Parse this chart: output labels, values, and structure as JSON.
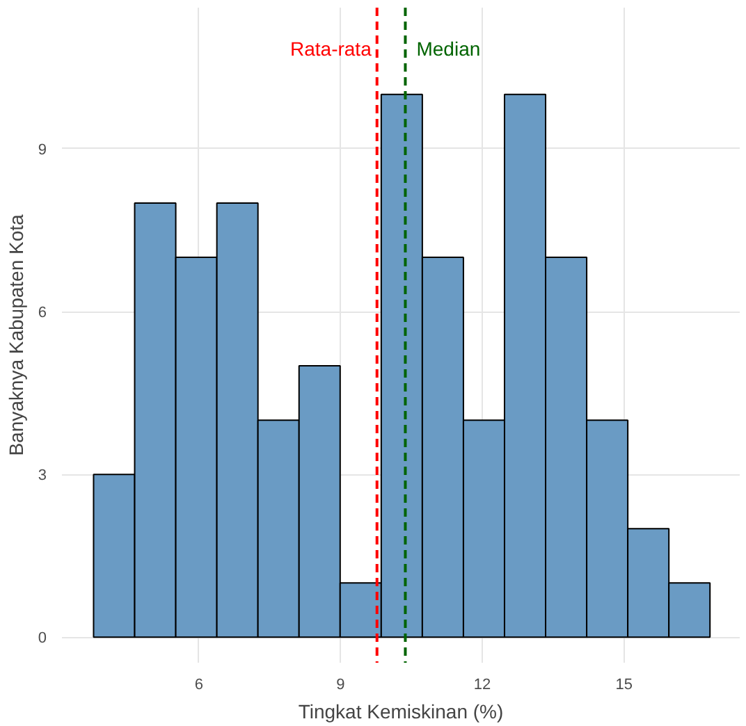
{
  "chart_data": {
    "type": "histogram",
    "xlabel": "Tingkat Kemiskinan (%)",
    "ylabel": "Banyaknya Kabupaten Kota",
    "bins": [
      3.77,
      4.64,
      5.51,
      6.38,
      7.25,
      8.12,
      8.99,
      9.86,
      10.73,
      11.6,
      12.47,
      13.34,
      14.21,
      15.08,
      15.95,
      16.82
    ],
    "values": [
      3,
      8,
      7,
      8,
      4,
      5,
      1,
      10,
      7,
      4,
      10,
      7,
      4,
      2,
      1
    ],
    "color": "#6a9bc4",
    "xlim": [
      3.1,
      17.45
    ],
    "ylim": [
      -0.47,
      11.6
    ],
    "xticks": [
      6,
      9,
      12,
      15
    ],
    "yticks": [
      0,
      3,
      6,
      9
    ],
    "grid": true,
    "ref_lines": [
      {
        "axis": "x",
        "value": 9.77,
        "label": "Rata-rata",
        "color": "#ff0000",
        "line_style": "dashed"
      },
      {
        "axis": "x",
        "value": 10.37,
        "label": "Median",
        "color": "#006400",
        "line_style": "dashed"
      }
    ]
  }
}
